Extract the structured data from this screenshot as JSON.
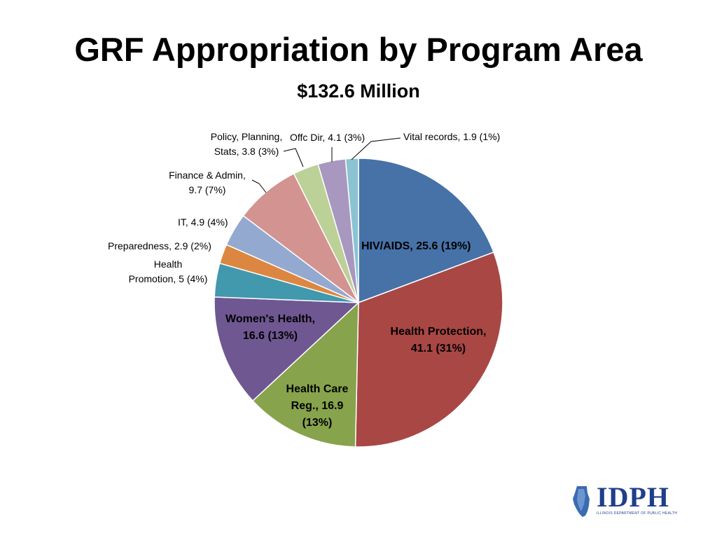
{
  "chart_data": {
    "type": "pie",
    "title": "GRF Appropriation by Program Area",
    "subtitle": "$132.6 Million",
    "start_angle_deg": 0,
    "direction": "clockwise",
    "slices": [
      {
        "key": "hiv",
        "label": "HIV/AIDS, 25.6 (19%)",
        "value": 25.6,
        "color": "#4672a8"
      },
      {
        "key": "hp",
        "label": "Health Protection, 41.1 (31%)",
        "value": 41.1,
        "color": "#a84744"
      },
      {
        "key": "hcr",
        "label": "Health Care Reg., 16.9 (13%)",
        "value": 16.9,
        "color": "#87a34c"
      },
      {
        "key": "wh",
        "label": "Women's Health, 16.6 (13%)",
        "value": 16.6,
        "color": "#6f5792"
      },
      {
        "key": "hpro",
        "label": "Health Promotion, 5 (4%)",
        "value": 5,
        "color": "#4298ad"
      },
      {
        "key": "prep",
        "label": "Preparedness, 2.9 (2%)",
        "value": 2.9,
        "color": "#dc8741"
      },
      {
        "key": "it",
        "label": "IT, 4.9 (4%)",
        "value": 4.9,
        "color": "#93a9d0"
      },
      {
        "key": "fin",
        "label": "Finance & Admin, 9.7 (7%)",
        "value": 9.7,
        "color": "#d39391"
      },
      {
        "key": "pps",
        "label": "Policy, Planning, Stats, 3.8 (3%)",
        "value": 3.8,
        "color": "#bbd197"
      },
      {
        "key": "offc",
        "label": "Offc Dir, 4.1 (3%)",
        "value": 4.1,
        "color": "#a898bf"
      },
      {
        "key": "vital",
        "label": "Vital records, 1.9 (1%)",
        "value": 1.9,
        "color": "#8cc3d3"
      }
    ]
  },
  "labels": {
    "hiv": "HIV/AIDS, 25.6 (19%)",
    "hp_1": "Health Protection,",
    "hp_2": "41.1 (31%)",
    "hcr_1": "Health Care",
    "hcr_2": "Reg., 16.9",
    "hcr_3": "(13%)",
    "wh_1": "Women's Health,",
    "wh_2": "16.6 (13%)",
    "hpro_1": "Health",
    "hpro_2": "Promotion, 5 (4%)",
    "prep": "Preparedness, 2.9 (2%)",
    "it": "IT, 4.9 (4%)",
    "fin_1": "Finance & Admin,",
    "fin_2": "9.7 (7%)",
    "pps_1": "Policy, Planning,",
    "pps_2": "Stats, 3.8 (3%)",
    "offc": "Offc Dir, 4.1 (3%)",
    "vital": "Vital records, 1.9 (1%)"
  },
  "logo": {
    "text": "IDPH",
    "subtext": "ILLINOIS DEPARTMENT OF PUBLIC HEALTH",
    "color": "#1f3f8a"
  }
}
